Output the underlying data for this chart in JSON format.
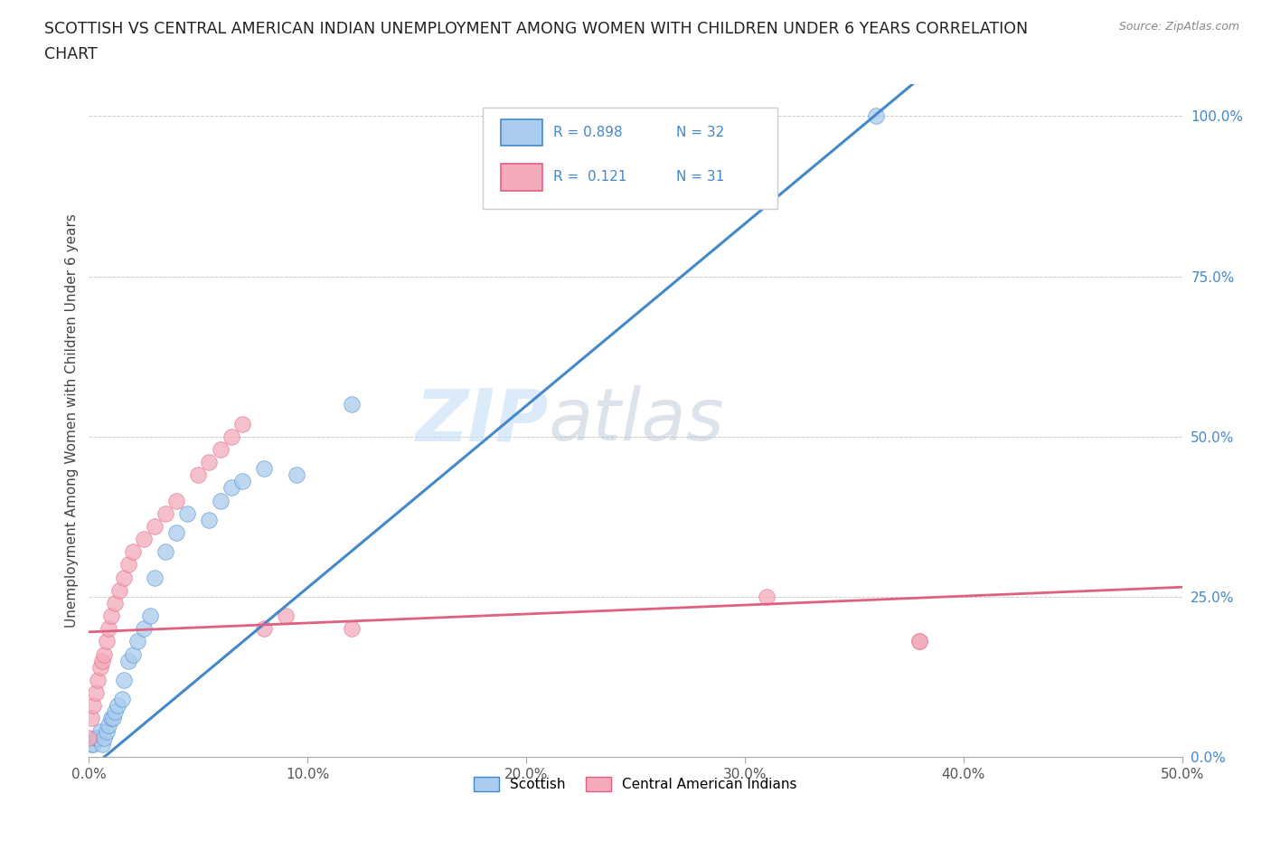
{
  "title_line1": "SCOTTISH VS CENTRAL AMERICAN INDIAN UNEMPLOYMENT AMONG WOMEN WITH CHILDREN UNDER 6 YEARS CORRELATION",
  "title_line2": "CHART",
  "source": "Source: ZipAtlas.com",
  "ylabel": "Unemployment Among Women with Children Under 6 years",
  "xlim": [
    0,
    0.5
  ],
  "ylim": [
    0,
    1.05
  ],
  "xtick_labels": [
    "0.0%",
    "",
    "10.0%",
    "",
    "20.0%",
    "",
    "30.0%",
    "",
    "40.0%",
    "",
    "50.0%"
  ],
  "xtick_values": [
    0,
    0.05,
    0.1,
    0.15,
    0.2,
    0.25,
    0.3,
    0.35,
    0.4,
    0.45,
    0.5
  ],
  "ytick_labels": [
    "0.0%",
    "25.0%",
    "50.0%",
    "75.0%",
    "100.0%"
  ],
  "ytick_values": [
    0,
    0.25,
    0.5,
    0.75,
    1.0
  ],
  "watermark_zip": "ZIP",
  "watermark_atlas": "atlas",
  "legend_r_scottish": "0.898",
  "legend_n_scottish": "32",
  "legend_r_central": "0.121",
  "legend_n_central": "31",
  "scottish_color": "#aaccee",
  "central_color": "#f4aabb",
  "trendline_scottish_color": "#4488cc",
  "trendline_central_color": "#e06080",
  "scottish_x": [
    0.001,
    0.002,
    0.003,
    0.004,
    0.005,
    0.006,
    0.007,
    0.008,
    0.009,
    0.01,
    0.011,
    0.012,
    0.013,
    0.015,
    0.016,
    0.018,
    0.02,
    0.022,
    0.025,
    0.028,
    0.03,
    0.035,
    0.04,
    0.045,
    0.055,
    0.06,
    0.065,
    0.07,
    0.08,
    0.095,
    0.12,
    0.36
  ],
  "scottish_y": [
    0.02,
    0.02,
    0.03,
    0.03,
    0.04,
    0.02,
    0.03,
    0.04,
    0.05,
    0.06,
    0.06,
    0.07,
    0.08,
    0.09,
    0.12,
    0.15,
    0.16,
    0.18,
    0.2,
    0.22,
    0.28,
    0.32,
    0.35,
    0.38,
    0.37,
    0.4,
    0.42,
    0.43,
    0.45,
    0.44,
    0.55,
    1.0
  ],
  "central_x": [
    0.0,
    0.001,
    0.002,
    0.003,
    0.004,
    0.005,
    0.006,
    0.007,
    0.008,
    0.009,
    0.01,
    0.012,
    0.014,
    0.016,
    0.018,
    0.02,
    0.025,
    0.03,
    0.035,
    0.04,
    0.05,
    0.055,
    0.06,
    0.065,
    0.07,
    0.08,
    0.09,
    0.12,
    0.31,
    0.38,
    0.38
  ],
  "central_y": [
    0.03,
    0.06,
    0.08,
    0.1,
    0.12,
    0.14,
    0.15,
    0.16,
    0.18,
    0.2,
    0.22,
    0.24,
    0.26,
    0.28,
    0.3,
    0.32,
    0.34,
    0.36,
    0.38,
    0.4,
    0.44,
    0.46,
    0.48,
    0.5,
    0.52,
    0.2,
    0.22,
    0.2,
    0.25,
    0.18,
    0.18
  ]
}
